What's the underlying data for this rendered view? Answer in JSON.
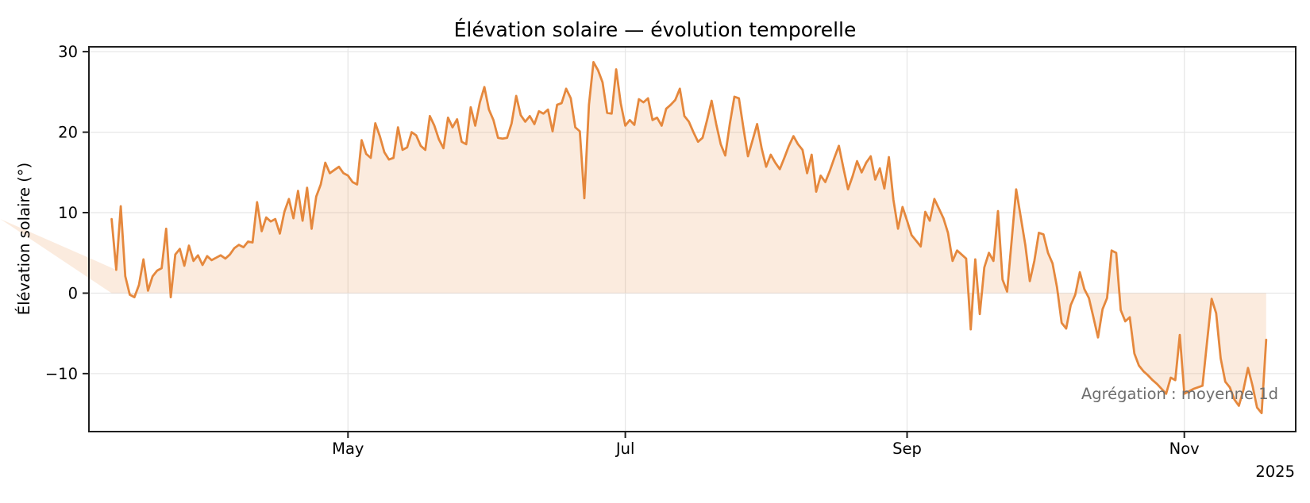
{
  "title": "Élévation solaire — évolution temporelle",
  "annotation": "Agrégation : moyenne 1d",
  "year_label": "2025",
  "colors": {
    "line": "#e5883d",
    "fill": "rgba(229,136,61,0.17)",
    "grid": "#e7e7e7",
    "spine": "#1f1f1f",
    "tick_text": "#000000",
    "annotation_text": "#6e6e6e",
    "background": "#ffffff"
  },
  "chart_data": {
    "type": "line",
    "title": "Élévation solaire — évolution temporelle",
    "xlabel": "",
    "ylabel": "Élévation solaire (°)",
    "annotation": "Agrégation : moyenne 1d",
    "year_label": "2025",
    "aggregation": "moyenne 1d",
    "x_start_date": "2025-03-10",
    "x_unit": "day",
    "x_tick_days": [
      52,
      113,
      175,
      236
    ],
    "x_tick_labels": [
      "May",
      "Jul",
      "Sep",
      "Nov"
    ],
    "y_ticks": [
      -10,
      0,
      10,
      20,
      30
    ],
    "xlim_days": [
      -5,
      260.5
    ],
    "ylim": [
      -17.2,
      30.6
    ],
    "grid": true,
    "fill_to_zero": true,
    "legend": "none",
    "values": [
      9.2,
      2.9,
      10.8,
      2.1,
      -0.2,
      -0.5,
      1.0,
      4.2,
      0.3,
      2.1,
      2.8,
      3.1,
      8.0,
      -0.5,
      4.8,
      5.5,
      3.4,
      5.9,
      4.0,
      4.7,
      3.5,
      4.6,
      4.1,
      4.4,
      4.7,
      4.3,
      4.8,
      5.6,
      6.0,
      5.7,
      6.4,
      6.3,
      11.3,
      7.7,
      9.4,
      8.9,
      9.2,
      7.4,
      10.1,
      11.7,
      9.3,
      12.7,
      9.0,
      13.1,
      8.0,
      12.0,
      13.5,
      16.2,
      14.9,
      15.3,
      15.7,
      14.9,
      14.6,
      13.8,
      13.5,
      19.0,
      17.3,
      16.8,
      21.1,
      19.5,
      17.5,
      16.6,
      16.8,
      20.6,
      17.8,
      18.1,
      20.0,
      19.6,
      18.3,
      17.8,
      22.0,
      20.8,
      19.1,
      18.0,
      21.8,
      20.6,
      21.6,
      18.8,
      18.5,
      23.1,
      20.8,
      23.7,
      25.6,
      22.8,
      21.5,
      19.3,
      19.2,
      19.3,
      21.1,
      24.5,
      22.1,
      21.3,
      22.0,
      21.0,
      22.6,
      22.3,
      22.8,
      20.1,
      23.4,
      23.6,
      25.4,
      24.2,
      20.6,
      20.1,
      11.8,
      23.4,
      28.7,
      27.7,
      26.2,
      22.4,
      22.3,
      27.8,
      23.6,
      20.8,
      21.5,
      20.9,
      24.1,
      23.7,
      24.2,
      21.5,
      21.8,
      20.8,
      22.9,
      23.4,
      24.0,
      25.4,
      22.0,
      21.3,
      20.0,
      18.8,
      19.3,
      21.5,
      23.9,
      21.0,
      18.5,
      17.1,
      21.0,
      24.4,
      24.2,
      20.5,
      17.0,
      19.0,
      21.0,
      18.0,
      15.7,
      17.2,
      16.2,
      15.4,
      16.8,
      18.3,
      19.5,
      18.5,
      17.8,
      14.9,
      17.2,
      12.6,
      14.6,
      13.8,
      15.2,
      16.8,
      18.3,
      15.5,
      12.9,
      14.5,
      16.4,
      15.0,
      16.2,
      17.0,
      14.1,
      15.5,
      13.0,
      16.9,
      11.6,
      8.0,
      10.7,
      9.0,
      7.2,
      6.5,
      5.8,
      10.1,
      9.0,
      11.7,
      10.5,
      9.3,
      7.5,
      4.0,
      5.3,
      4.8,
      4.3,
      -4.5,
      4.2,
      -2.6,
      3.2,
      5.0,
      4.0,
      10.2,
      1.7,
      0.2,
      6.5,
      12.9,
      9.5,
      6.0,
      1.5,
      4.0,
      7.5,
      7.3,
      5.0,
      3.7,
      0.7,
      -3.7,
      -4.4,
      -1.5,
      -0.2,
      2.6,
      0.5,
      -0.6,
      -3.0,
      -5.5,
      -2.0,
      -0.6,
      5.3,
      5.0,
      -2.1,
      -3.5,
      -3.0,
      -7.5,
      -9.0,
      -9.7,
      -10.2,
      -10.8,
      -11.3,
      -11.9,
      -12.5,
      -10.5,
      -10.8,
      -5.2,
      -12.5,
      -12.2,
      -11.9,
      -11.7,
      -11.5,
      -6.0,
      -0.7,
      -2.5,
      -8.1,
      -11.0,
      -11.7,
      -13.2,
      -14.0,
      -12.0,
      -9.3,
      -11.5,
      -14.2,
      -14.9,
      -5.8
    ]
  }
}
